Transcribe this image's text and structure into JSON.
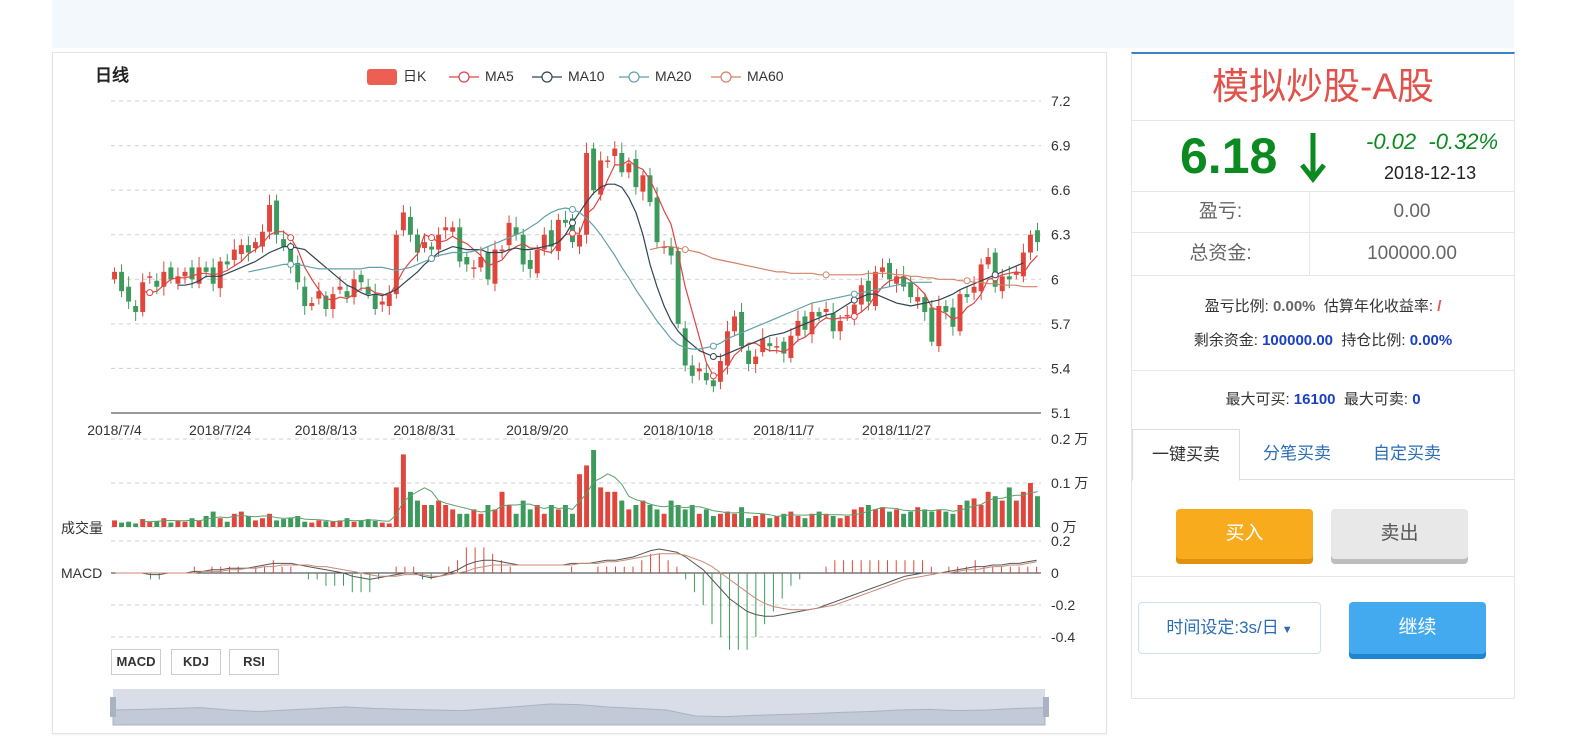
{
  "chart_title": "日线",
  "legend": [
    {
      "label": "日K",
      "color": "#ec5f52",
      "type": "box"
    },
    {
      "label": "MA5",
      "color": "#dd4444",
      "type": "line"
    },
    {
      "label": "MA10",
      "color": "#2f4554",
      "type": "line"
    },
    {
      "label": "MA20",
      "color": "#61a0a8",
      "type": "line"
    },
    {
      "label": "MA60",
      "color": "#d48265",
      "type": "line"
    }
  ],
  "colors": {
    "up": "#e0463c",
    "down": "#3c9a5c"
  },
  "price_axis": [
    "7.2",
    "6.9",
    "6.6",
    "6.3",
    "6",
    "5.7",
    "5.4",
    "5.1"
  ],
  "volume_axis": [
    "0.2 万",
    "0.1 万",
    "0 万"
  ],
  "macd_axis": [
    "0.2",
    "0",
    "-0.2",
    "-0.4"
  ],
  "date_labels": [
    "2018/7/4",
    "2018/7/24",
    "2018/8/13",
    "2018/8/31",
    "2018/9/20",
    "2018/10/18",
    "2018/11/7",
    "2018/11/27"
  ],
  "volume_label": "成交量",
  "macd_label": "MACD",
  "indicator_buttons": [
    "MACD",
    "KDJ",
    "RSI"
  ],
  "chart_data": {
    "type": "candlestick",
    "ylim": [
      5.1,
      7.2
    ],
    "volume_ylim": [
      0,
      0.2
    ],
    "macd_ylim": [
      -0.45,
      0.2
    ],
    "closes": [
      6.05,
      5.92,
      5.85,
      5.78,
      5.98,
      6.02,
      5.95,
      6.05,
      6.0,
      6.02,
      6.05,
      6.0,
      6.08,
      6.05,
      5.97,
      6.12,
      6.1,
      6.2,
      6.23,
      6.18,
      6.25,
      6.32,
      6.5,
      6.3,
      6.22,
      6.08,
      5.98,
      5.82,
      5.84,
      5.92,
      5.8,
      5.9,
      5.95,
      5.88,
      6.0,
      5.98,
      5.9,
      5.8,
      5.85,
      5.9,
      6.3,
      6.45,
      6.3,
      6.18,
      6.25,
      6.2,
      6.3,
      6.35,
      6.35,
      6.12,
      6.1,
      6.08,
      6.15,
      6.0,
      6.2,
      6.2,
      6.38,
      6.3,
      6.1,
      6.07,
      6.2,
      6.3,
      6.22,
      6.4,
      6.38,
      6.25,
      6.3,
      6.85,
      6.6,
      6.8,
      6.8,
      6.88,
      6.72,
      6.78,
      6.62,
      6.7,
      6.52,
      6.25,
      6.22,
      6.16,
      5.7,
      5.42,
      5.35,
      5.4,
      5.32,
      5.28,
      5.45,
      5.65,
      5.75,
      5.55,
      5.43,
      5.48,
      5.6,
      5.55,
      5.55,
      5.5,
      5.62,
      5.72,
      5.66,
      5.78,
      5.75,
      5.8,
      5.65,
      5.72,
      5.76,
      5.83,
      5.96,
      5.85,
      6.05,
      6.08,
      6.0,
      6.02,
      5.95,
      5.88,
      5.88,
      5.78,
      5.58,
      5.82,
      5.78,
      5.68,
      5.9,
      5.88,
      5.95,
      6.1,
      6.15,
      5.95,
      6.02,
      6.0,
      6.05,
      6.18,
      6.3,
      6.25
    ],
    "ma5": [
      null,
      null,
      null,
      null,
      5.92,
      5.91,
      5.92,
      5.96,
      6.0,
      6.01,
      6.01,
      6.02,
      6.04,
      6.04,
      6.03,
      6.04,
      6.06,
      6.09,
      6.12,
      6.17,
      6.2,
      6.24,
      6.3,
      6.32,
      6.32,
      6.28,
      6.2,
      6.08,
      6.0,
      5.93,
      5.87,
      5.86,
      5.88,
      5.87,
      5.9,
      5.94,
      5.94,
      5.91,
      5.9,
      5.89,
      5.97,
      6.06,
      6.12,
      6.17,
      6.3,
      6.28,
      6.25,
      6.26,
      6.29,
      6.26,
      6.24,
      6.2,
      6.16,
      6.09,
      6.11,
      6.13,
      6.19,
      6.22,
      6.24,
      6.21,
      6.21,
      6.19,
      6.18,
      6.24,
      6.3,
      6.31,
      6.31,
      6.44,
      6.48,
      6.56,
      6.67,
      6.77,
      6.77,
      6.8,
      6.76,
      6.74,
      6.67,
      6.57,
      6.46,
      6.37,
      6.17,
      5.95,
      5.78,
      5.61,
      5.44,
      5.35,
      5.36,
      5.41,
      5.49,
      5.53,
      5.57,
      5.57,
      5.54,
      5.52,
      5.52,
      5.51,
      5.54,
      5.59,
      5.61,
      5.65,
      5.71,
      5.74,
      5.73,
      5.74,
      5.74,
      5.75,
      5.78,
      5.82,
      5.89,
      5.95,
      5.99,
      6.0,
      6.02,
      5.99,
      5.95,
      5.9,
      5.81,
      5.79,
      5.77,
      5.73,
      5.75,
      5.81,
      5.84,
      5.9,
      6.0,
      6.01,
      6.03,
      6.04,
      6.05,
      6.04,
      6.11,
      6.16
    ],
    "ma10": [
      null,
      null,
      null,
      null,
      null,
      null,
      null,
      null,
      null,
      5.96,
      5.96,
      5.97,
      5.99,
      6.02,
      6.02,
      6.02,
      6.04,
      6.06,
      6.08,
      6.1,
      6.12,
      6.15,
      6.18,
      6.2,
      6.22,
      6.22,
      6.21,
      6.2,
      6.16,
      6.12,
      6.08,
      6.04,
      6.0,
      5.96,
      5.94,
      5.91,
      5.89,
      5.9,
      5.89,
      5.91,
      5.93,
      5.97,
      6.01,
      6.05,
      6.1,
      6.14,
      6.18,
      6.2,
      6.22,
      6.21,
      6.2,
      6.2,
      6.2,
      6.18,
      6.18,
      6.18,
      6.2,
      6.21,
      6.2,
      6.2,
      6.21,
      6.22,
      6.23,
      6.25,
      6.3,
      6.38,
      6.45,
      6.52,
      6.58,
      6.62,
      6.64,
      6.64,
      6.62,
      6.55,
      6.45,
      6.3,
      6.1,
      5.95,
      5.82,
      5.72,
      5.65,
      5.6,
      5.56,
      5.52,
      5.5,
      5.48,
      5.48,
      5.5,
      5.52,
      5.54,
      5.56,
      5.58,
      5.6,
      5.62,
      5.63,
      5.64,
      5.66,
      5.68,
      5.7,
      5.72,
      5.74,
      5.76,
      5.77,
      5.8,
      5.83,
      5.86,
      5.88,
      5.9,
      5.9,
      5.88,
      5.86,
      5.84,
      5.83,
      5.82,
      5.83,
      5.84,
      5.85,
      5.86,
      5.88,
      5.9,
      5.93,
      5.95,
      5.97,
      5.99,
      6.01,
      6.03,
      6.05,
      6.07,
      6.09,
      6.11
    ],
    "ma20": [
      null,
      null,
      null,
      null,
      null,
      null,
      null,
      null,
      null,
      null,
      null,
      null,
      null,
      null,
      null,
      null,
      null,
      null,
      null,
      6.05,
      6.06,
      6.07,
      6.08,
      6.09,
      6.1,
      6.1,
      6.1,
      6.09,
      6.08,
      6.07,
      6.07,
      6.07,
      6.07,
      6.07,
      6.07,
      6.07,
      6.08,
      6.08,
      6.08,
      6.07,
      6.06,
      6.07,
      6.08,
      6.1,
      6.12,
      6.14,
      6.16,
      6.17,
      6.18,
      6.18,
      6.18,
      6.19,
      6.2,
      6.22,
      6.24,
      6.26,
      6.28,
      6.3,
      6.32,
      6.35,
      6.38,
      6.42,
      6.45,
      6.47,
      6.48,
      6.47,
      6.45,
      6.41,
      6.36,
      6.3,
      6.23,
      6.16,
      6.08,
      6.01,
      5.93,
      5.86,
      5.79,
      5.72,
      5.66,
      5.6,
      5.56,
      5.54,
      5.53,
      5.53,
      5.54,
      5.55,
      5.57,
      5.6,
      5.62,
      5.64,
      5.66,
      5.68,
      5.7,
      5.72,
      5.74,
      5.76,
      5.78,
      5.8,
      5.82,
      5.84,
      5.85,
      5.86,
      5.87,
      5.88,
      5.89,
      5.9,
      5.91,
      5.92,
      5.93,
      5.94,
      5.95,
      5.96,
      5.97,
      5.98,
      5.98,
      5.98,
      5.98
    ],
    "ma60": [
      6.2,
      6.21,
      6.22,
      6.22,
      6.21,
      6.2,
      6.19,
      6.18,
      6.16,
      6.14,
      6.13,
      6.12,
      6.11,
      6.1,
      6.09,
      6.08,
      6.07,
      6.06,
      6.05,
      6.05,
      6.04,
      6.04,
      6.04,
      6.04,
      6.03,
      6.03,
      6.03,
      6.03,
      6.03,
      6.03,
      6.03,
      6.04,
      6.04,
      6.04,
      6.04,
      6.03,
      6.03,
      6.02,
      6.02,
      6.01,
      6.01,
      6.0,
      6.0,
      6.0,
      5.99,
      5.99,
      5.98,
      5.98,
      5.97,
      5.97,
      5.96,
      5.96,
      5.96,
      5.95,
      5.95,
      5.95
    ],
    "volume": [
      0.015,
      0.01,
      0.012,
      0.008,
      0.018,
      0.012,
      0.014,
      0.02,
      0.01,
      0.015,
      0.012,
      0.02,
      0.014,
      0.025,
      0.035,
      0.02,
      0.012,
      0.03,
      0.035,
      0.025,
      0.015,
      0.02,
      0.03,
      0.015,
      0.018,
      0.02,
      0.025,
      0.012,
      0.01,
      0.015,
      0.013,
      0.012,
      0.015,
      0.02,
      0.012,
      0.015,
      0.018,
      0.014,
      0.01,
      0.008,
      0.09,
      0.165,
      0.08,
      0.06,
      0.05,
      0.05,
      0.06,
      0.05,
      0.04,
      0.03,
      0.03,
      0.04,
      0.03,
      0.05,
      0.04,
      0.08,
      0.05,
      0.03,
      0.06,
      0.04,
      0.05,
      0.03,
      0.05,
      0.04,
      0.05,
      0.03,
      0.12,
      0.14,
      0.175,
      0.09,
      0.08,
      0.08,
      0.06,
      0.04,
      0.05,
      0.06,
      0.05,
      0.04,
      0.03,
      0.06,
      0.05,
      0.04,
      0.05,
      0.03,
      0.04,
      0.025,
      0.03,
      0.035,
      0.03,
      0.045,
      0.02,
      0.025,
      0.03,
      0.02,
      0.025,
      0.03,
      0.035,
      0.025,
      0.02,
      0.03,
      0.035,
      0.03,
      0.025,
      0.02,
      0.025,
      0.04,
      0.045,
      0.05,
      0.04,
      0.045,
      0.035,
      0.04,
      0.03,
      0.035,
      0.045,
      0.04,
      0.035,
      0.04,
      0.035,
      0.03,
      0.05,
      0.06,
      0.065,
      0.05,
      0.08,
      0.07,
      0.06,
      0.09,
      0.06,
      0.08,
      0.1,
      0.07
    ],
    "macd_dif": [
      0.0,
      0.0,
      0.0,
      0.0,
      -0.01,
      -0.01,
      0.0,
      0.0,
      0.0,
      0.01,
      0.01,
      0.02,
      0.02,
      0.03,
      0.03,
      0.03,
      0.04,
      0.05,
      0.06,
      0.06,
      0.06,
      0.05,
      0.04,
      0.03,
      0.02,
      0.01,
      0.0,
      -0.02,
      -0.03,
      -0.04,
      -0.03,
      -0.02,
      -0.01,
      0.0,
      0.0,
      -0.02,
      -0.03,
      -0.02,
      0.0,
      0.02,
      0.05,
      0.07,
      0.08,
      0.08,
      0.07,
      0.06,
      0.05,
      0.05,
      0.05,
      0.05,
      0.05,
      0.05,
      0.06,
      0.06,
      0.06,
      0.07,
      0.08,
      0.08,
      0.09,
      0.1,
      0.12,
      0.14,
      0.15,
      0.14,
      0.13,
      0.1,
      0.06,
      0.02,
      -0.04,
      -0.1,
      -0.16,
      -0.2,
      -0.24,
      -0.26,
      -0.27,
      -0.27,
      -0.26,
      -0.25,
      -0.24,
      -0.23,
      -0.22,
      -0.2,
      -0.18,
      -0.16,
      -0.14,
      -0.12,
      -0.1,
      -0.08,
      -0.06,
      -0.04,
      -0.02,
      -0.01,
      0.0,
      0.0,
      0.0,
      0.01,
      0.02,
      0.03,
      0.04,
      0.04,
      0.05,
      0.05,
      0.06,
      0.06,
      0.07,
      0.08
    ],
    "macd_dea": [
      0.0,
      0.0,
      0.0,
      0.0,
      0.0,
      0.0,
      0.0,
      0.0,
      0.0,
      0.0,
      0.01,
      0.01,
      0.01,
      0.02,
      0.02,
      0.03,
      0.03,
      0.04,
      0.04,
      0.05,
      0.05,
      0.05,
      0.05,
      0.04,
      0.04,
      0.03,
      0.02,
      0.01,
      0.0,
      -0.01,
      -0.02,
      -0.02,
      -0.02,
      -0.01,
      -0.01,
      -0.01,
      -0.02,
      -0.02,
      -0.01,
      0.0,
      0.01,
      0.03,
      0.04,
      0.05,
      0.05,
      0.05,
      0.05,
      0.05,
      0.05,
      0.05,
      0.05,
      0.05,
      0.05,
      0.06,
      0.06,
      0.06,
      0.07,
      0.07,
      0.08,
      0.09,
      0.1,
      0.11,
      0.12,
      0.12,
      0.12,
      0.11,
      0.09,
      0.07,
      0.04,
      0.0,
      -0.04,
      -0.08,
      -0.12,
      -0.16,
      -0.19,
      -0.21,
      -0.22,
      -0.23,
      -0.23,
      -0.23,
      -0.22,
      -0.21,
      -0.2,
      -0.18,
      -0.16,
      -0.14,
      -0.12,
      -0.1,
      -0.08,
      -0.06,
      -0.04,
      -0.03,
      -0.02,
      -0.01,
      0.0,
      0.0,
      0.01,
      0.02,
      0.02,
      0.03,
      0.04,
      0.04,
      0.05,
      0.05,
      0.06,
      0.07
    ],
    "slider_values": [
      0.5,
      0.52,
      0.55,
      0.58,
      0.5,
      0.45,
      0.5,
      0.55,
      0.6,
      0.55,
      0.52,
      0.5,
      0.48,
      0.55,
      0.62,
      0.7,
      0.68,
      0.6,
      0.55,
      0.5,
      0.3,
      0.28,
      0.32,
      0.35,
      0.38,
      0.42,
      0.45,
      0.5,
      0.52,
      0.48,
      0.5,
      0.55,
      0.58
    ]
  },
  "sidebar": {
    "title": "模拟炒股-A股",
    "price": "6.18",
    "change": "-0.02",
    "change_pct": "-0.32%",
    "date": "2018-12-13",
    "pl_label": "盈亏:",
    "pl_value": "0.00",
    "total_label": "总资金:",
    "total_value": "100000.00",
    "pl_ratio_label": "盈亏比例:",
    "pl_ratio_value": "0.00%",
    "annual_label": "估算年化收益率:",
    "annual_value": "/",
    "remain_label": "剩余资金:",
    "remain_value": "100000.00",
    "position_label": "持仓比例:",
    "position_value": "0.00%",
    "max_buy_label": "最大可买:",
    "max_buy_value": "16100",
    "max_sell_label": "最大可卖:",
    "max_sell_value": "0",
    "tabs": [
      "一键买卖",
      "分笔买卖",
      "自定买卖"
    ],
    "buy": "买入",
    "sell": "卖出",
    "time_setting": "时间设定:3s/日",
    "continue": "继续"
  }
}
